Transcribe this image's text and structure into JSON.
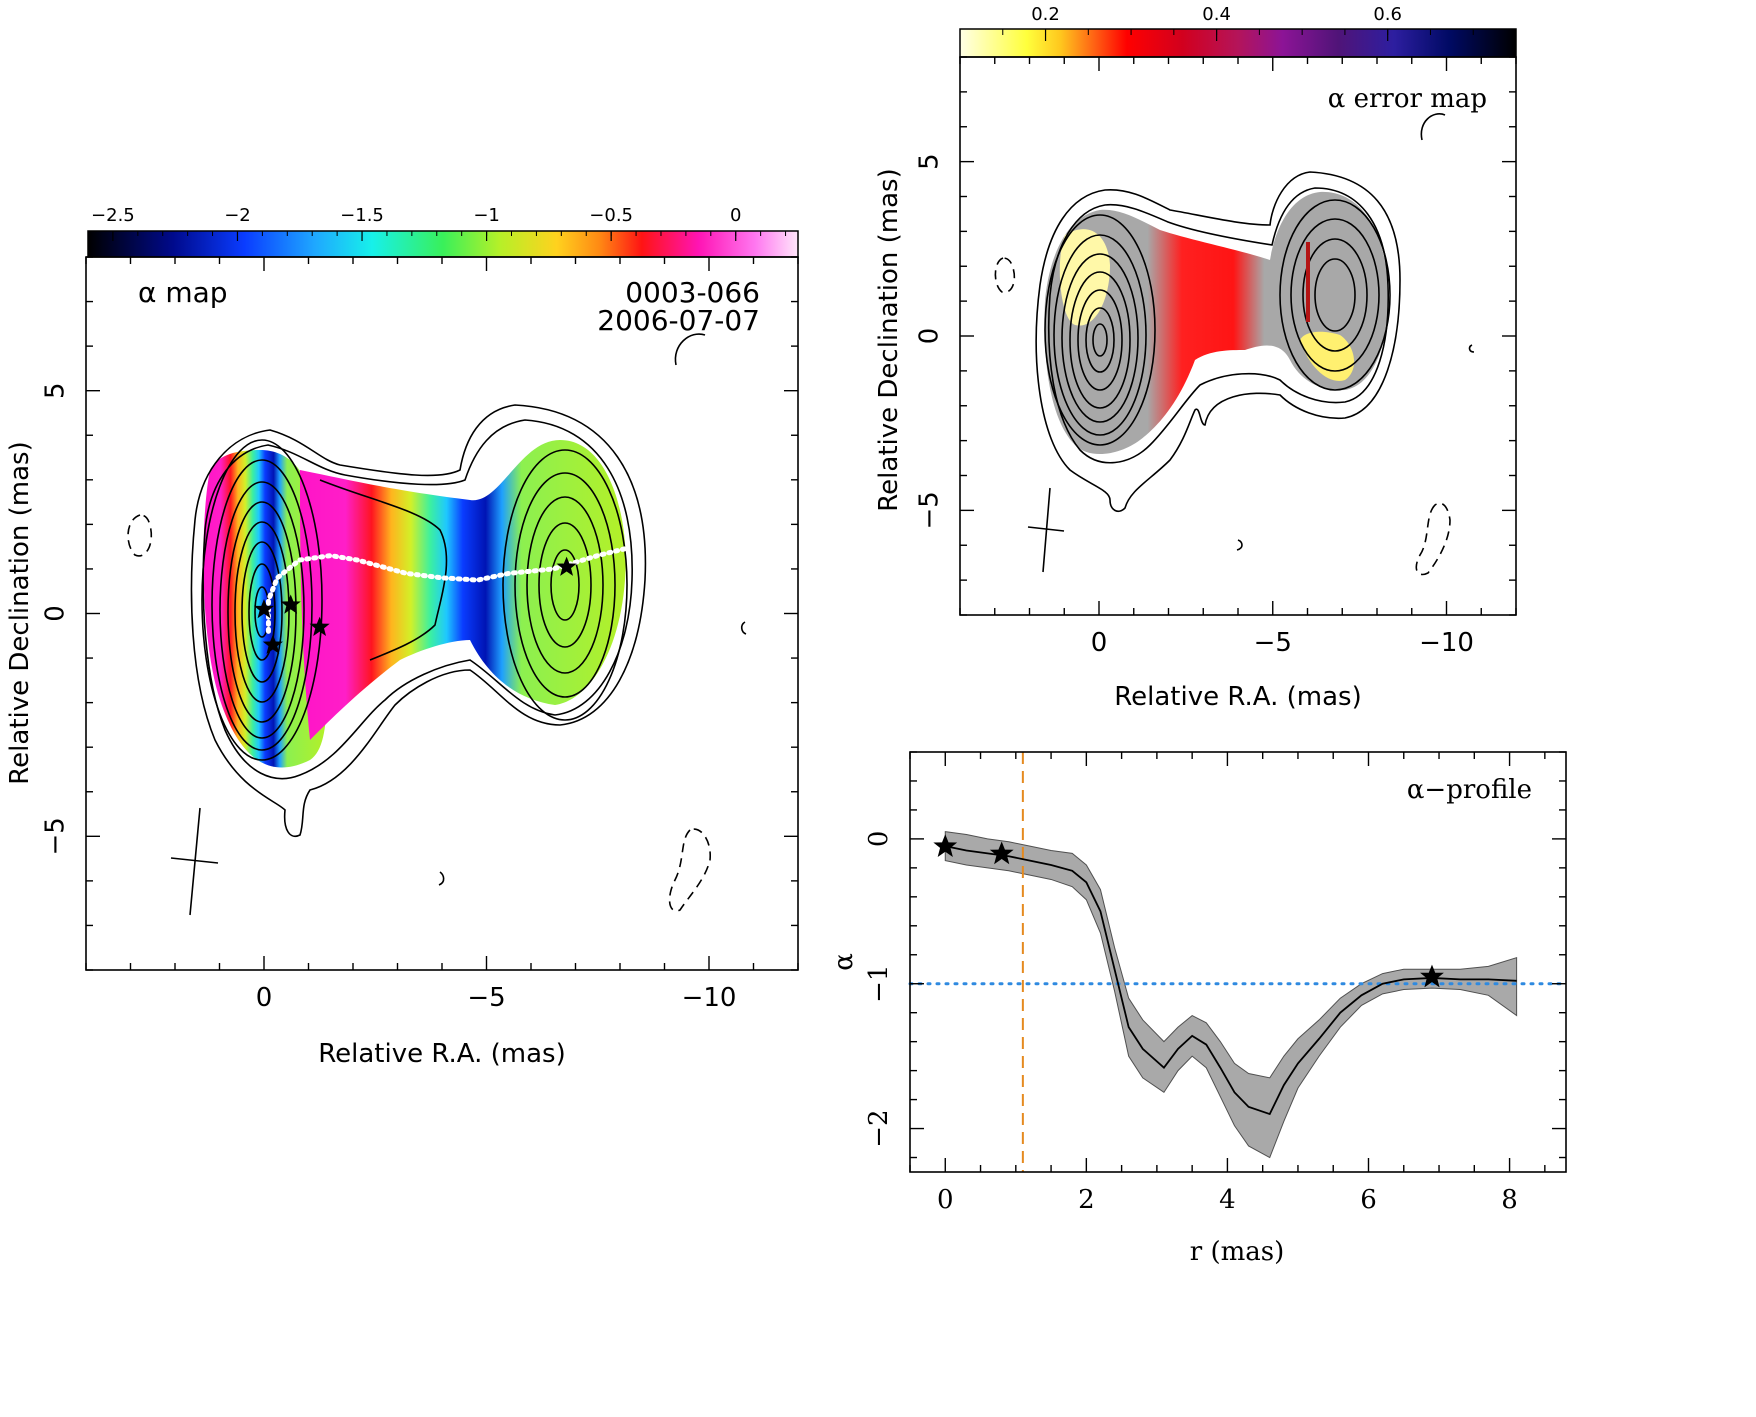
{
  "chart_data": [
    {
      "type": "heatmap",
      "panel": "alpha-map",
      "title": "α map",
      "source_label": "0003-066",
      "date_label": "2006-07-07",
      "xlabel": "Relative R.A. (mas)",
      "ylabel": "Relative Declination (mas)",
      "xlim": [
        4,
        -12
      ],
      "ylim": [
        -8,
        8
      ],
      "xticks": [
        0,
        -5,
        -10
      ],
      "yticks": [
        5,
        0,
        -5
      ],
      "colorbar": {
        "range": [
          -2.6,
          0.25
        ],
        "ticks": [
          -2.5,
          -2,
          -1.5,
          -1,
          -0.5,
          0
        ],
        "tick_labels": [
          "−2.5",
          "−2",
          "−1.5",
          "−1",
          "−0.5",
          "0"
        ]
      },
      "markers": [
        {
          "x": 0.0,
          "y": 0.1
        },
        {
          "x": -0.6,
          "y": 0.2
        },
        {
          "x": -0.2,
          "y": -0.7
        },
        {
          "x": -1.25,
          "y": -0.3
        },
        {
          "x": -6.8,
          "y": 1.05
        }
      ],
      "ridge_line": [
        {
          "x": -0.1,
          "y": -0.4
        },
        {
          "x": -0.1,
          "y": 0.3
        },
        {
          "x": -0.3,
          "y": 0.8
        },
        {
          "x": -0.8,
          "y": 1.2
        },
        {
          "x": -1.5,
          "y": 1.3
        },
        {
          "x": -2.1,
          "y": 1.2
        },
        {
          "x": -3.2,
          "y": 0.9
        },
        {
          "x": -4.0,
          "y": 0.8
        },
        {
          "x": -4.8,
          "y": 0.75
        },
        {
          "x": -5.5,
          "y": 0.9
        },
        {
          "x": -6.5,
          "y": 1.0
        },
        {
          "x": -7.5,
          "y": 1.3
        },
        {
          "x": -8.1,
          "y": 1.45
        }
      ]
    },
    {
      "type": "heatmap",
      "panel": "alpha-error-map",
      "title": "α error map",
      "xlabel": "Relative R.A. (mas)",
      "ylabel": "Relative Declination (mas)",
      "xlim": [
        4,
        -12
      ],
      "ylim": [
        -8,
        8
      ],
      "xticks": [
        0,
        -5,
        -10
      ],
      "yticks": [
        5,
        0,
        -5
      ],
      "colorbar": {
        "range": [
          0.1,
          0.75
        ],
        "ticks": [
          0.2,
          0.4,
          0.6
        ],
        "tick_labels": [
          "0.2",
          "0.4",
          "0.6"
        ]
      }
    },
    {
      "type": "line",
      "panel": "alpha-profile",
      "title": "α−profile",
      "xlabel": "r (mas)",
      "ylabel": "α",
      "xlim": [
        -0.5,
        8.8
      ],
      "ylim": [
        -2.3,
        0.6
      ],
      "xticks": [
        0,
        2,
        4,
        6,
        8
      ],
      "yticks": [
        0,
        -1,
        -2
      ],
      "ytick_labels": [
        "0",
        "−1",
        "−2"
      ],
      "x": [
        0,
        0.3,
        0.6,
        0.9,
        1.2,
        1.5,
        1.8,
        2.0,
        2.2,
        2.4,
        2.6,
        2.8,
        3.1,
        3.3,
        3.5,
        3.7,
        3.9,
        4.1,
        4.3,
        4.6,
        4.8,
        5.0,
        5.3,
        5.6,
        5.9,
        6.2,
        6.5,
        6.9,
        7.3,
        7.7,
        8.1
      ],
      "values": [
        -0.05,
        -0.08,
        -0.1,
        -0.12,
        -0.15,
        -0.18,
        -0.22,
        -0.3,
        -0.5,
        -0.9,
        -1.3,
        -1.45,
        -1.58,
        -1.45,
        -1.36,
        -1.42,
        -1.58,
        -1.75,
        -1.85,
        -1.9,
        -1.7,
        -1.55,
        -1.38,
        -1.2,
        -1.08,
        -1.0,
        -0.97,
        -0.96,
        -0.97,
        -0.97,
        -0.98
      ],
      "band_upper": [
        0.05,
        0.03,
        0.0,
        -0.02,
        -0.05,
        -0.08,
        -0.1,
        -0.18,
        -0.35,
        -0.75,
        -1.1,
        -1.25,
        -1.4,
        -1.3,
        -1.22,
        -1.27,
        -1.4,
        -1.55,
        -1.62,
        -1.65,
        -1.5,
        -1.38,
        -1.25,
        -1.1,
        -1.0,
        -0.93,
        -0.9,
        -0.9,
        -0.9,
        -0.88,
        -0.82
      ],
      "band_lower": [
        -0.15,
        -0.18,
        -0.2,
        -0.22,
        -0.25,
        -0.28,
        -0.33,
        -0.42,
        -0.65,
        -1.05,
        -1.5,
        -1.65,
        -1.75,
        -1.6,
        -1.5,
        -1.58,
        -1.78,
        -1.98,
        -2.12,
        -2.2,
        -1.95,
        -1.72,
        -1.5,
        -1.3,
        -1.15,
        -1.07,
        -1.04,
        -1.03,
        -1.04,
        -1.08,
        -1.22
      ],
      "markers": [
        {
          "x": 0,
          "y": -0.05
        },
        {
          "x": 0.8,
          "y": -0.1
        },
        {
          "x": 6.9,
          "y": -0.95
        }
      ],
      "vline_x": 1.1,
      "hline_y": -1.0,
      "colors": {
        "band": "#a9a9a9",
        "vline": "#e58a1f",
        "hline": "#2f8ae0"
      }
    }
  ]
}
